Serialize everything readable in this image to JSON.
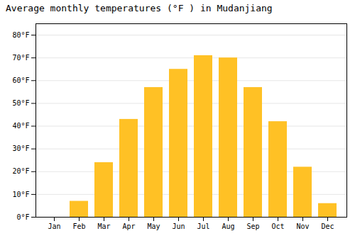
{
  "chart_data": {
    "type": "bar",
    "title": "Average monthly temperatures (°F ) in Mudanjiang",
    "categories": [
      "Jan",
      "Feb",
      "Mar",
      "Apr",
      "May",
      "Jun",
      "Jul",
      "Aug",
      "Sep",
      "Oct",
      "Nov",
      "Dec"
    ],
    "values": [
      0,
      7,
      24,
      43,
      57,
      65,
      71,
      70,
      57,
      42,
      22,
      6
    ],
    "color": "#FFC125",
    "ylim": [
      0,
      85
    ],
    "yticks": [
      {
        "value": 0,
        "label": "0°F"
      },
      {
        "value": 10,
        "label": "10°F"
      },
      {
        "value": 20,
        "label": "20°F"
      },
      {
        "value": 30,
        "label": "30°F"
      },
      {
        "value": 40,
        "label": "40°F"
      },
      {
        "value": 50,
        "label": "50°F"
      },
      {
        "value": 60,
        "label": "60°F"
      },
      {
        "value": 70,
        "label": "70°F"
      },
      {
        "value": 80,
        "label": "80°F"
      }
    ],
    "grid": true
  }
}
